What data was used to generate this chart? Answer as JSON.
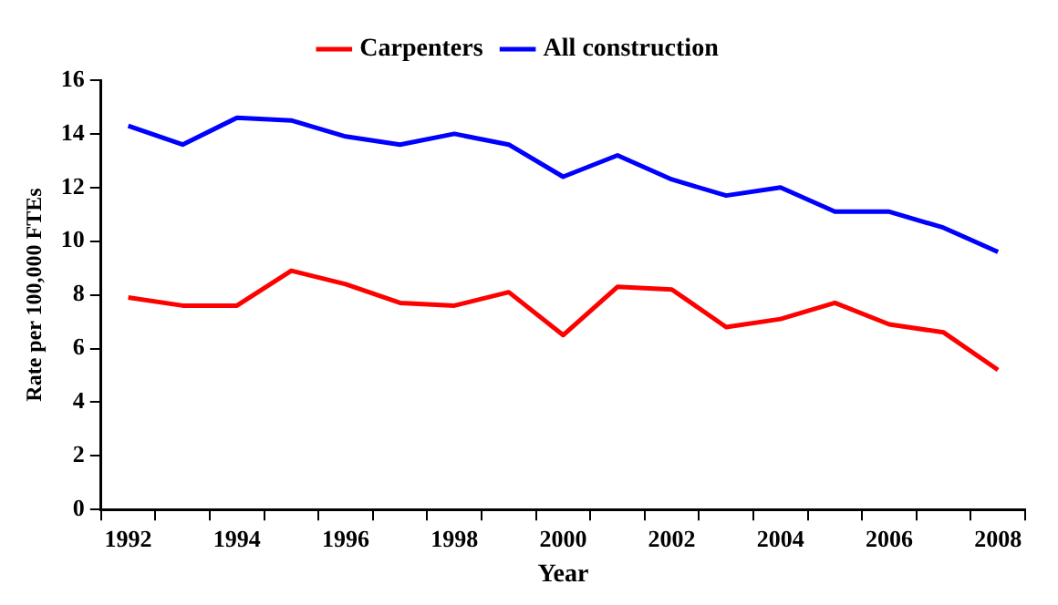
{
  "chart_data": {
    "type": "line",
    "xlabel": "Year",
    "ylabel": "Rate per 100,000 FTEs",
    "categories": [
      "1992",
      null,
      "1994",
      null,
      "1996",
      null,
      "1998",
      null,
      "2000",
      null,
      "2002",
      null,
      "2004",
      null,
      "2006",
      null,
      "2008"
    ],
    "series": [
      {
        "name": "Carpenters",
        "color": "#ff0000",
        "values": [
          7.9,
          7.6,
          7.6,
          8.9,
          8.4,
          7.7,
          7.6,
          8.1,
          6.5,
          8.3,
          8.2,
          6.8,
          7.1,
          7.7,
          6.9,
          6.6,
          5.2
        ]
      },
      {
        "name": "All construction",
        "color": "#0000ff",
        "values": [
          14.3,
          13.6,
          14.6,
          14.5,
          13.9,
          13.6,
          14.0,
          13.6,
          12.4,
          13.2,
          12.3,
          11.7,
          12.0,
          11.1,
          11.1,
          10.5,
          9.6
        ]
      }
    ],
    "ylim": [
      0,
      16
    ],
    "yticks": [
      0,
      2,
      4,
      6,
      8,
      10,
      12,
      14,
      16
    ],
    "grid": false,
    "legend": "top",
    "marker": "none",
    "line_style": "solid"
  }
}
